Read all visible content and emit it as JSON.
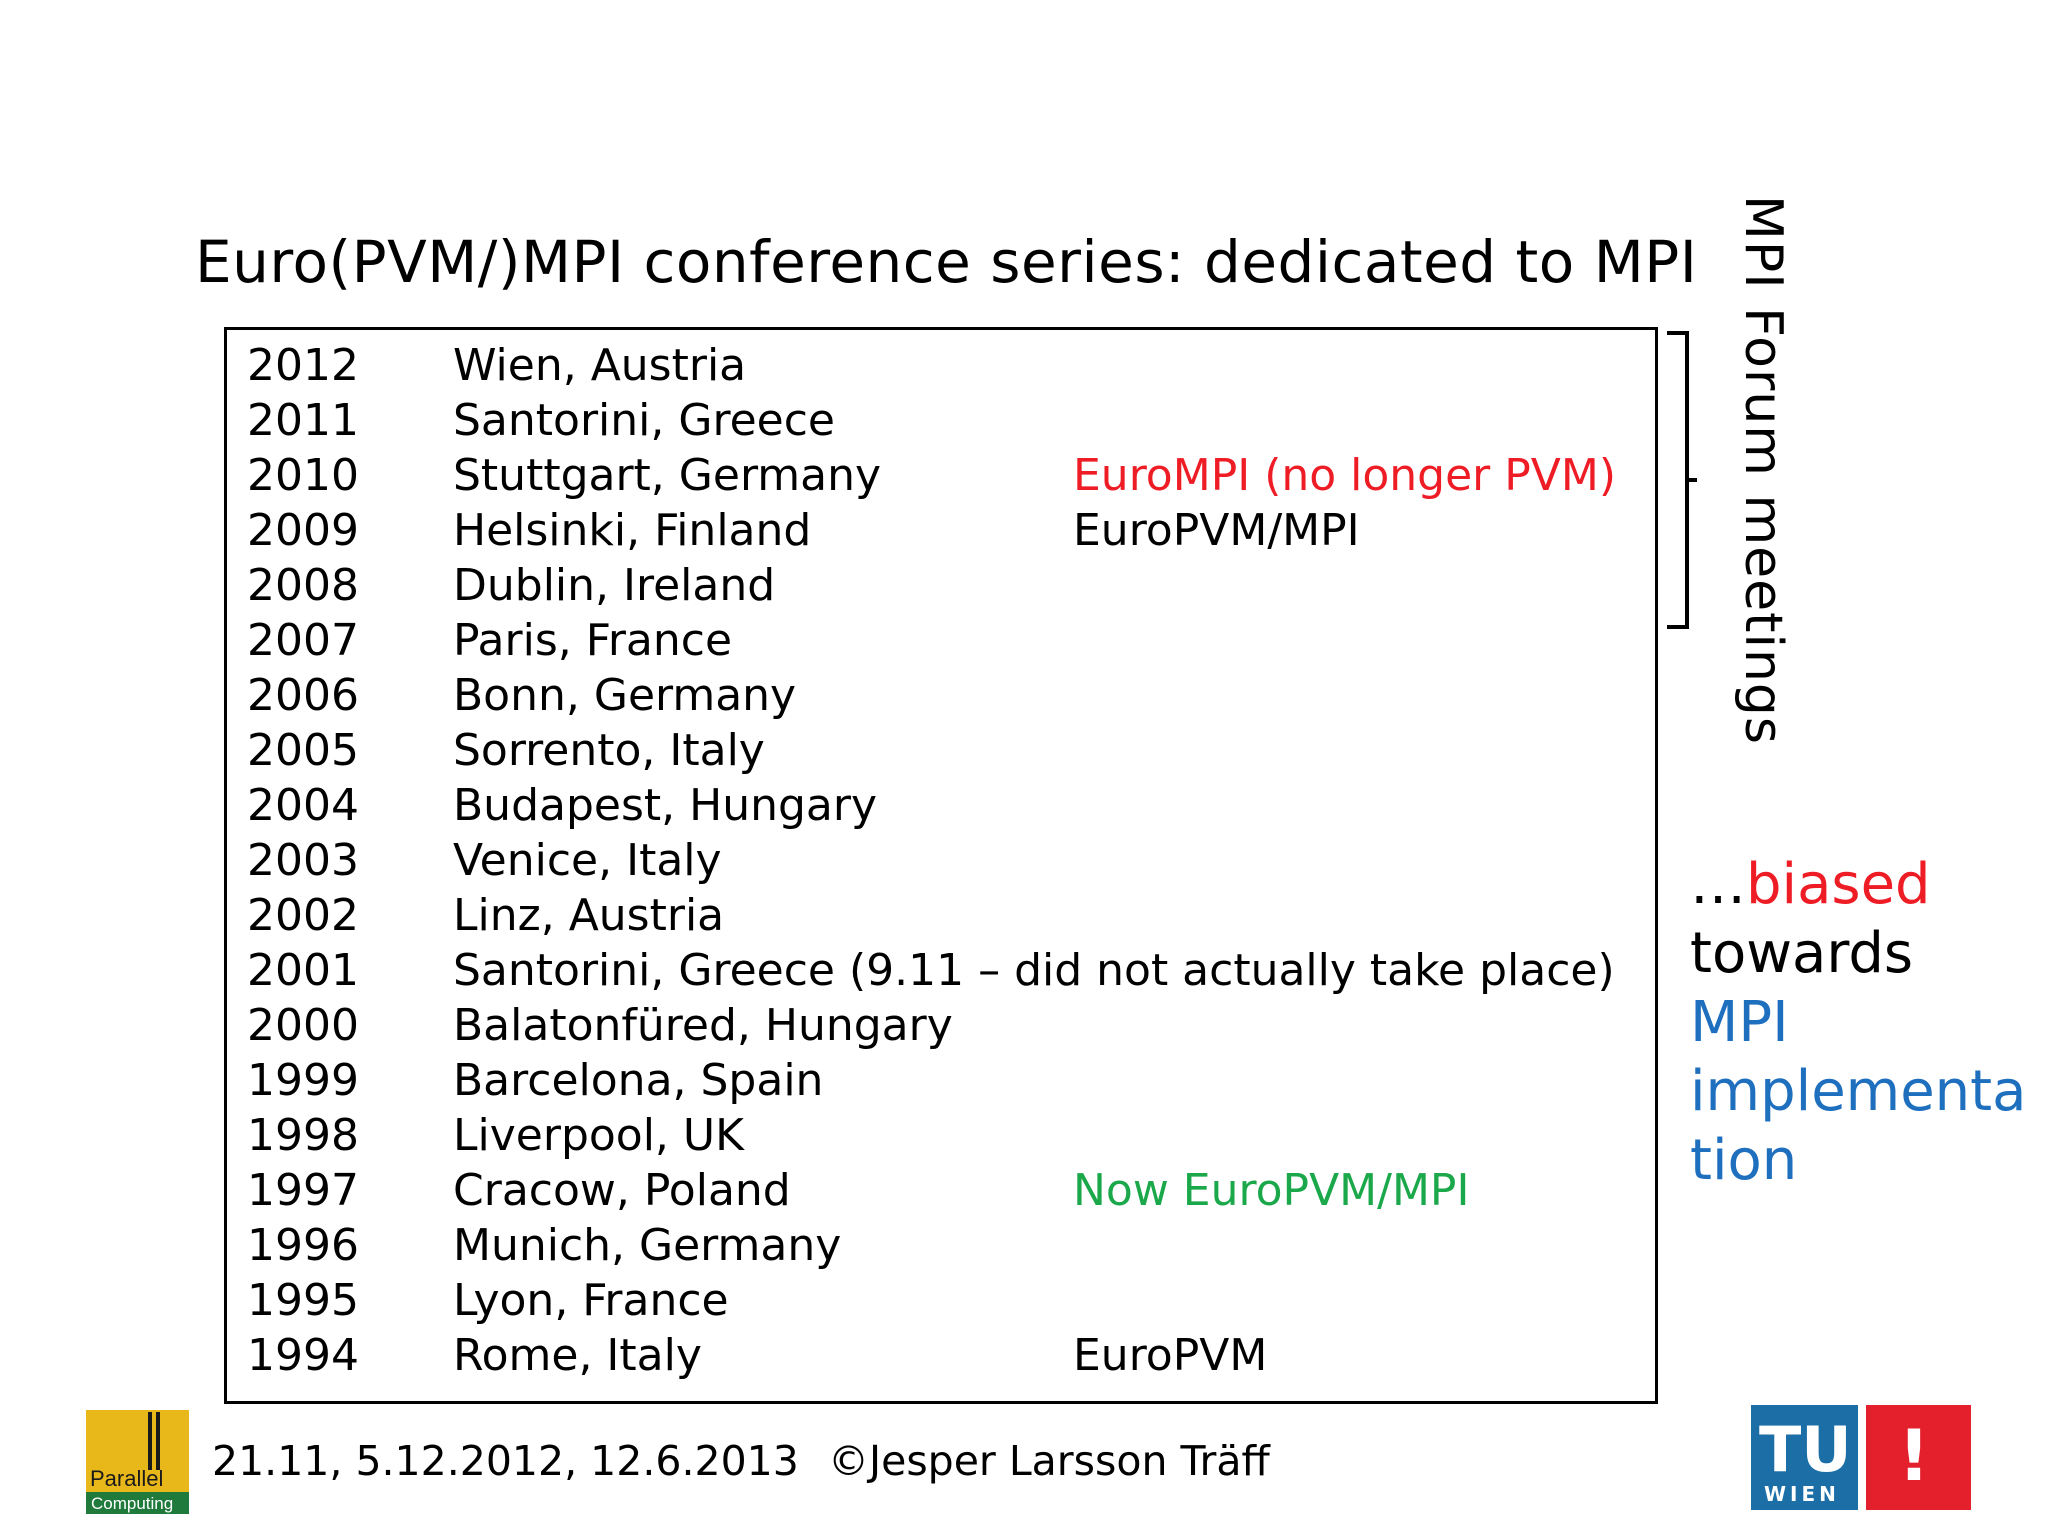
{
  "title": "Euro(PVM/)MPI conference series: dedicated to MPI",
  "conferences": [
    {
      "year": "2012",
      "location": "Wien, Austria",
      "note": ""
    },
    {
      "year": "2011",
      "location": "Santorini, Greece",
      "note": ""
    },
    {
      "year": "2010",
      "location": "Stuttgart, Germany",
      "note": "EuroMPI (no longer PVM)"
    },
    {
      "year": "2009",
      "location": "Helsinki, Finland",
      "note": "EuroPVM/MPI"
    },
    {
      "year": "2008",
      "location": "Dublin, Ireland",
      "note": ""
    },
    {
      "year": "2007",
      "location": "Paris, France",
      "note": ""
    },
    {
      "year": "2006",
      "location": "Bonn, Germany",
      "note": ""
    },
    {
      "year": "2005",
      "location": "Sorrento, Italy",
      "note": ""
    },
    {
      "year": "2004",
      "location": "Budapest, Hungary",
      "note": ""
    },
    {
      "year": "2003",
      "location": "Venice, Italy",
      "note": ""
    },
    {
      "year": "2002",
      "location": "Linz, Austria",
      "note": ""
    },
    {
      "year": "2001",
      "location": "Santorini, Greece (9.11 – did not actually take place)",
      "note": ""
    },
    {
      "year": "2000",
      "location": "Balatonfüred, Hungary",
      "note": ""
    },
    {
      "year": "1999",
      "location": "Barcelona, Spain",
      "note": ""
    },
    {
      "year": "1998",
      "location": "Liverpool, UK",
      "note": ""
    },
    {
      "year": "1997",
      "location": "Cracow, Poland",
      "note": "Now EuroPVM/MPI"
    },
    {
      "year": "1996",
      "location": "Munich, Germany",
      "note": ""
    },
    {
      "year": "1995",
      "location": "Lyon, France",
      "note": ""
    },
    {
      "year": "1994",
      "location": "Rome, Italy",
      "note": "EuroPVM"
    }
  ],
  "note_colors": {
    "EuroMPI (no longer PVM)": "#ee1c25",
    "EuroPVM/MPI": "#000000",
    "Now EuroPVM/MPI": "#1aa84a",
    "EuroPVM": "#000000"
  },
  "side_label": "MPI Forum meetings",
  "bias": {
    "ellipsis": "…",
    "biased": "biased",
    "towards": "towards",
    "mpi": "MPI",
    "implementa": "implementa",
    "tion": "tion"
  },
  "colors": {
    "red": "#ee1c25",
    "blue": "#1f6fbf",
    "green": "#1aa84a",
    "tu_blue": "#1c6fa6",
    "tu_red": "#e4202c",
    "pc_gold": "#e8b81a",
    "pc_green": "#1f7a3c"
  },
  "footer": {
    "dates": "21.11, 5.12.2012, 12.6.2013",
    "author": "©Jesper Larsson Träff"
  },
  "logos": {
    "parallel_top": "Parallel",
    "parallel_bottom": "Computing",
    "tu": "TU",
    "wien": "WIEN",
    "exclaim": "!"
  }
}
